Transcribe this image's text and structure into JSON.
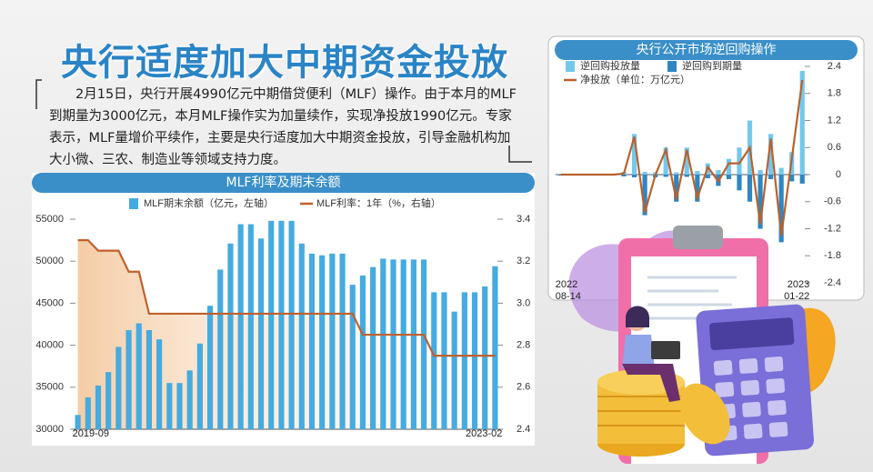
{
  "header": {
    "title": "央行适度加大中期资金投放",
    "text": "2月15日，央行开展4990亿元中期借贷便利（MLF）操作。由于本月的MLF到期量为3000亿元，本月MLF操作实为加量续作，实现净投放1990亿元。专家表示，MLF量增价平续作，主要是央行适度加大中期资金投放，引导金融机构加大小微、三农、制造业等领域支持力度。"
  },
  "chart_data": [
    {
      "type": "bar",
      "title": "MLF利率及期末余额",
      "categories": [
        "2019-09",
        null,
        null,
        null,
        null,
        null,
        null,
        null,
        null,
        null,
        null,
        null,
        null,
        null,
        null,
        null,
        null,
        null,
        null,
        null,
        null,
        null,
        null,
        null,
        null,
        null,
        null,
        null,
        null,
        null,
        null,
        null,
        null,
        null,
        null,
        null,
        null,
        null,
        null,
        null,
        null,
        "2023-02"
      ],
      "series": [
        {
          "name": "MLF期末余额（亿元，左轴）",
          "color": "#45abe0",
          "type": "bar",
          "values": [
            31700,
            33800,
            35200,
            36800,
            39800,
            41800,
            42600,
            41800,
            40700,
            35500,
            35500,
            37000,
            40200,
            44700,
            49000,
            52100,
            54400,
            54400,
            52700,
            54800,
            54800,
            54800,
            52100,
            50900,
            50700,
            50900,
            50900,
            47200,
            48300,
            49300,
            50300,
            50200,
            50200,
            50200,
            50200,
            46300,
            46300,
            44000,
            46300,
            46300,
            47000,
            49400
          ]
        },
        {
          "name": "MLF利率：1年（%，右轴）",
          "color": "#c0602c",
          "type": "line",
          "axis": "y2",
          "area": true,
          "values": [
            3.3,
            3.3,
            3.25,
            3.25,
            3.25,
            3.15,
            3.15,
            2.95,
            2.95,
            2.95,
            2.95,
            2.95,
            2.95,
            2.95,
            2.95,
            2.95,
            2.95,
            2.95,
            2.95,
            2.95,
            2.95,
            2.95,
            2.95,
            2.95,
            2.95,
            2.95,
            2.95,
            2.95,
            2.85,
            2.85,
            2.85,
            2.85,
            2.85,
            2.85,
            2.85,
            2.75,
            2.75,
            2.75,
            2.75,
            2.75,
            2.75,
            2.75
          ]
        }
      ],
      "ylim": [
        30000,
        55000
      ],
      "yticks": [
        30000,
        35000,
        40000,
        45000,
        50000,
        55000
      ],
      "y2lim": [
        2.4,
        3.4
      ],
      "y2ticks": [
        2.4,
        2.6,
        2.8,
        {
          "value": 3,
          "label": "3.0"
        },
        3.2,
        3.4
      ],
      "grid": false
    },
    {
      "type": "bar",
      "title": "央行公开市场逆回购操作",
      "categories": [
        "2022\n08-14",
        null,
        null,
        null,
        null,
        null,
        null,
        null,
        null,
        null,
        null,
        null,
        null,
        null,
        null,
        null,
        null,
        null,
        null,
        null,
        null,
        null,
        null,
        "2023\n01-22"
      ],
      "series": [
        {
          "name": "逆回购投放量",
          "color": "#74c8ec",
          "type": "bar",
          "values": [
            0.02,
            0.02,
            0.02,
            0.02,
            0.02,
            0.02,
            0.06,
            0.9,
            0.06,
            0.05,
            0.6,
            0.05,
            0.6,
            0.08,
            0.25,
            0.1,
            0.35,
            0.6,
            1.2,
            0.1,
            0.9,
            0.15,
            0.5,
            2.3
          ]
        },
        {
          "name": "逆回购到期量",
          "color": "#2f86c2",
          "type": "bar",
          "values": [
            -0.02,
            -0.02,
            -0.02,
            -0.02,
            -0.02,
            -0.02,
            -0.04,
            -0.06,
            -0.9,
            -0.06,
            -0.05,
            -0.6,
            -0.05,
            -0.6,
            -0.08,
            -0.25,
            -0.1,
            -0.35,
            -0.6,
            -1.2,
            -0.1,
            -1.5,
            -0.15,
            -0.2
          ]
        },
        {
          "name": "净投放（单位：万亿元）",
          "color": "#b8622e",
          "type": "line",
          "values": [
            0,
            0,
            0,
            0,
            0,
            0,
            0.02,
            0.84,
            -0.84,
            -0.01,
            0.55,
            -0.55,
            0.55,
            -0.52,
            0.17,
            -0.15,
            0.25,
            0.25,
            0.6,
            -1.1,
            0.8,
            -1.35,
            0.35,
            2.1
          ]
        }
      ],
      "ylim": [
        -2.4,
        2.4
      ],
      "yticks": [
        2.4,
        1.8,
        1.2,
        0.6,
        0,
        -0.6,
        -1.2,
        -1.8,
        -2.4
      ],
      "grid": false
    }
  ]
}
